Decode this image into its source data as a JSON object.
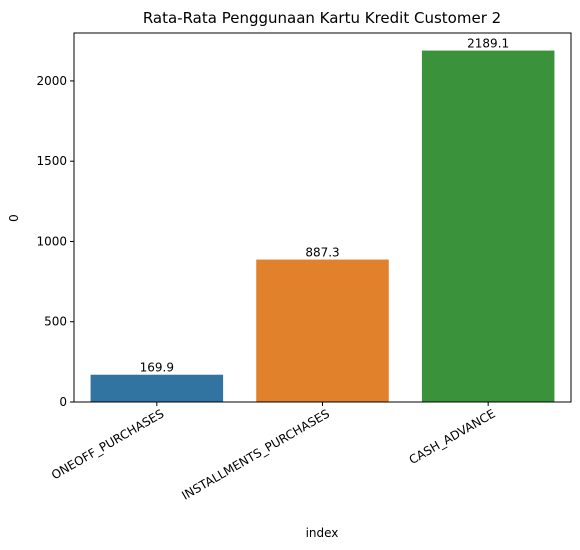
{
  "chart_data": {
    "type": "bar",
    "title": "Rata-Rata Penggunaan Kartu Kredit Customer 2",
    "xlabel": "index",
    "ylabel": "0",
    "categories": [
      "ONEOFF_PURCHASES",
      "INSTALLMENTS_PURCHASES",
      "CASH_ADVANCE"
    ],
    "values": [
      169.9,
      887.3,
      2189.1
    ],
    "data_labels": [
      "169.9",
      "887.3",
      "2189.1"
    ],
    "colors": [
      "#3274a1",
      "#e1812c",
      "#3a923a"
    ],
    "ylim": [
      0,
      2298.6
    ],
    "yticks": [
      0,
      500,
      1000,
      1500,
      2000
    ],
    "grid": false,
    "legend": "none"
  }
}
